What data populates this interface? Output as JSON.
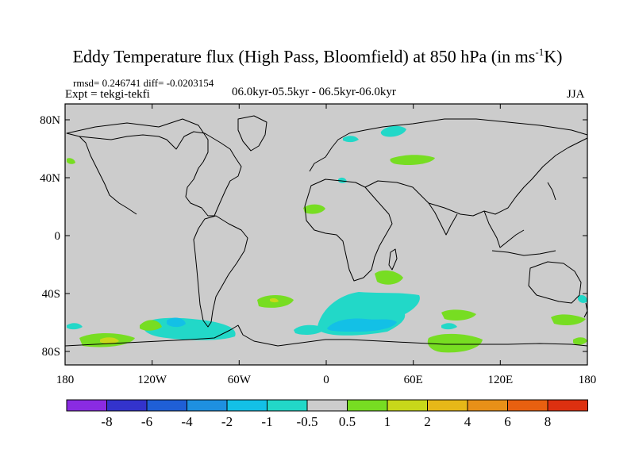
{
  "title": {
    "main": "Eddy Temperature flux (High Pass, Bloomfield) at 850 hPa (in ms",
    "sup": "-1",
    "end": "K)"
  },
  "stats": {
    "rmsd_text": "rmsd= 0.246741 diff= -0.0203154"
  },
  "experiment": "Expt = tekgi-tekfi",
  "periods": "06.0kyr-05.5kyr - 06.5kyr-06.0kyr",
  "season": "JJA",
  "lat_labels": [
    "80N",
    "40N",
    "0",
    "40S",
    "80S"
  ],
  "lon_labels": [
    "180",
    "120W",
    "60W",
    "0",
    "60E",
    "120E",
    "180"
  ],
  "colorbar": {
    "labels": [
      "-8",
      "-6",
      "-4",
      "-2",
      "-1",
      "-0.5",
      "0.5",
      "1",
      "2",
      "4",
      "6",
      "8"
    ],
    "colors": [
      "#8a2be2",
      "#3333cc",
      "#1f5fd6",
      "#1e90e0",
      "#13c0e6",
      "#22d8c8",
      "#cccccc",
      "#77dd22",
      "#c8d81a",
      "#e6b818",
      "#e89018",
      "#e86010",
      "#dd3010"
    ]
  },
  "map_style": {
    "land_fill": "#cccccc",
    "coast": "#000000"
  }
}
